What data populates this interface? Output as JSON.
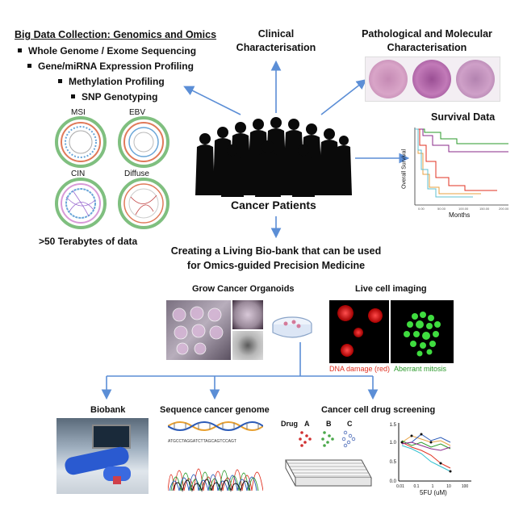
{
  "omics": {
    "heading": "Big Data Collection: Genomics and Omics",
    "items": [
      "Whole Genome / Exome Sequencing",
      "Gene/miRNA Expression Profiling",
      "Methylation Profiling",
      "SNP Genotyping"
    ],
    "circos_labels": [
      "MSI",
      "EBV",
      "CIN",
      "Diffuse"
    ],
    "data_note": ">50 Terabytes of data"
  },
  "clinical": {
    "line1": "Clinical",
    "line2": "Characterisation"
  },
  "pathology": {
    "line1": "Pathological and Molecular",
    "line2": "Characterisation"
  },
  "survival": {
    "title": "Survival Data",
    "ylabel": "Overall Survival",
    "xlabel": "Months"
  },
  "center": {
    "label": "Cancer Patients"
  },
  "biobank_statement": {
    "line1": "Creating a Living Bio-bank that can be used",
    "line2": "for Omics-guided Precision Medicine"
  },
  "organoids": {
    "title": "Grow Cancer Organoids"
  },
  "imaging": {
    "title": "Live cell imaging",
    "caption_red": "DNA damage (red)",
    "caption_green": "Aberrant mitosis"
  },
  "bottom": {
    "biobank": "Biobank",
    "sequence": "Sequence cancer genome",
    "screening": "Cancer cell drug screening"
  },
  "drug": {
    "label": "Drug",
    "a": "A",
    "b": "B",
    "c": "C",
    "xlabel": "5FU (uM)",
    "yticks": [
      "1.5",
      "1.0",
      "0.5",
      "0.0"
    ],
    "xticks": [
      "0.01",
      "0.1",
      "1",
      "10",
      "100"
    ]
  },
  "colors": {
    "arrow": "#5b8ed6",
    "red": "#e03020",
    "green": "#2a9a2a"
  }
}
